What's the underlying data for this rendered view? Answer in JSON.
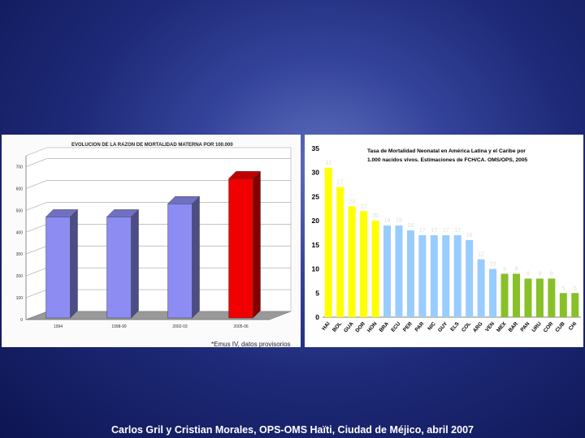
{
  "chart_data": [
    {
      "type": "bar",
      "title": "EVOLUCION DE LA RAZON DE MORTALIDAD MATERNA POR 100.000",
      "categories": [
        "1994",
        "1998-99",
        "2002-03",
        "2005-06"
      ],
      "values": [
        470,
        470,
        530,
        645
      ],
      "yticks": [
        0,
        100,
        200,
        300,
        400,
        500,
        600,
        700
      ],
      "ylim": [
        0,
        750
      ],
      "colors": [
        "#8c8cf2",
        "#8c8cf2",
        "#8c8cf2",
        "#f00000"
      ],
      "footnote": "*Emus IV, datos provisorios"
    },
    {
      "type": "bar",
      "title_lines": [
        "Tasa de Mortalidad Neonatal en América Latina y el Caribe por",
        "1.000 nacidos vivos. Estimaciones de FCH/CA. OMS/OPS, 2005"
      ],
      "categories": [
        "HAI",
        "BOL",
        "GUA",
        "DOR",
        "HON",
        "BRA",
        "ECU",
        "PER",
        "PAR",
        "NIC",
        "GUY",
        "ELS",
        "COL",
        "ARG",
        "VEN",
        "MEX",
        "BAR",
        "PAN",
        "URU",
        "COR",
        "CUB",
        "CHI"
      ],
      "values": [
        31,
        27,
        23,
        22,
        20,
        19,
        19,
        18,
        17,
        17,
        17,
        17,
        16,
        12,
        10,
        9,
        9,
        8,
        8,
        8,
        5,
        5
      ],
      "data_labels": [
        "31",
        "27",
        "23",
        "22",
        "20",
        "19",
        "19",
        "18",
        "17",
        "17",
        "17",
        "17",
        "16",
        "12",
        "10",
        "9",
        "9",
        "8",
        "8",
        "8",
        "5",
        "5"
      ],
      "yticks": [
        0,
        5,
        10,
        15,
        20,
        25,
        30,
        35
      ],
      "ylim": [
        0,
        35
      ],
      "colors": [
        "#ffff00",
        "#ffff00",
        "#ffff00",
        "#ffff00",
        "#ffff00",
        "#99ccff",
        "#99ccff",
        "#99ccff",
        "#99ccff",
        "#99ccff",
        "#99ccff",
        "#99ccff",
        "#99ccff",
        "#99ccff",
        "#99ccff",
        "#88c028",
        "#88c028",
        "#88c028",
        "#88c028",
        "#88c028",
        "#88c028",
        "#88c028"
      ]
    }
  ],
  "footer": {
    "credits": "Carlos Gril y Cristian Morales, OPS-OMS Haïti, Ciudad de Méjico, abril 2007"
  }
}
